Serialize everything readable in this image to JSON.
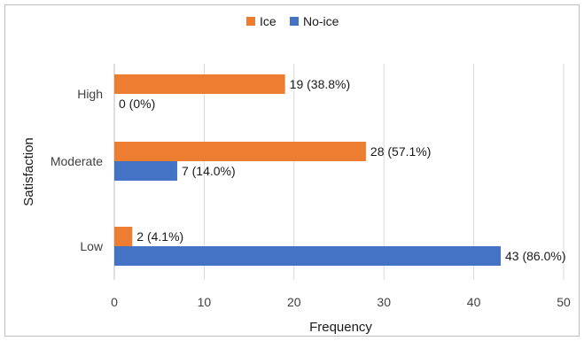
{
  "chart_data": {
    "type": "bar",
    "orientation": "horizontal",
    "categories": [
      "High",
      "Moderate",
      "Low"
    ],
    "series": [
      {
        "name": "Ice",
        "color": "#ed7d31",
        "values": [
          19,
          28,
          2
        ],
        "labels": [
          "19 (38.8%)",
          "28 (57.1%)",
          "2 (4.1%)"
        ]
      },
      {
        "name": "No-ice",
        "color": "#4472c4",
        "values": [
          0,
          7,
          43
        ],
        "labels": [
          "0 (0%)",
          "7 (14.0%)",
          "43 (86.0%)"
        ]
      }
    ],
    "xlabel": "Frequency",
    "ylabel": "Satisfaction",
    "xlim": [
      0,
      50
    ],
    "xticks": [
      0,
      10,
      20,
      30,
      40,
      50
    ],
    "grid": "vertical",
    "legend_position": "top"
  }
}
